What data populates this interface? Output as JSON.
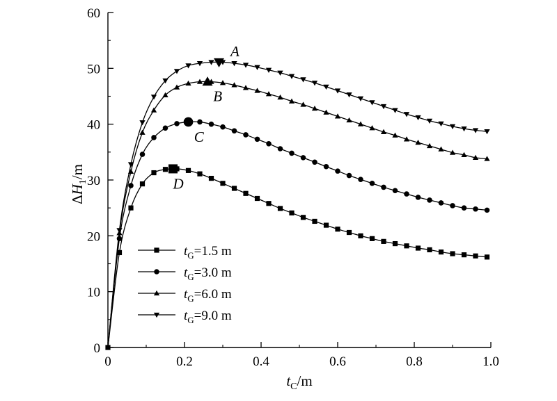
{
  "chart_data": {
    "type": "line",
    "xlabel": {
      "var": "t",
      "sub": "C",
      "unit": "/m"
    },
    "ylabel": {
      "prefix": "Δ",
      "var": "H",
      "sub": "1",
      "unit": "/m"
    },
    "xlim": [
      0,
      1.0
    ],
    "ylim": [
      0,
      60
    ],
    "x_ticks": [
      "0",
      "0.2",
      "0.4",
      "0.6",
      "0.8",
      "1.0"
    ],
    "y_ticks": [
      "0",
      "10",
      "20",
      "30",
      "40",
      "50",
      "60"
    ],
    "grid": false,
    "legend_position": "lower-left",
    "series": [
      {
        "name": "tG=1.5 m",
        "legend": {
          "var": "t",
          "sub": "G",
          "value": "=1.5 m"
        },
        "marker": "square",
        "x": [
          0,
          0.03,
          0.06,
          0.09,
          0.12,
          0.15,
          0.18,
          0.21,
          0.24,
          0.27,
          0.3,
          0.33,
          0.36,
          0.39,
          0.42,
          0.45,
          0.48,
          0.51,
          0.54,
          0.57,
          0.6,
          0.63,
          0.66,
          0.69,
          0.72,
          0.75,
          0.78,
          0.81,
          0.84,
          0.87,
          0.9,
          0.93,
          0.96,
          0.99
        ],
        "values": [
          0,
          17.0,
          25.0,
          29.3,
          31.3,
          31.9,
          32.0,
          31.7,
          31.1,
          30.3,
          29.4,
          28.5,
          27.6,
          26.7,
          25.8,
          24.9,
          24.1,
          23.3,
          22.6,
          21.9,
          21.2,
          20.6,
          20.0,
          19.5,
          19.0,
          18.6,
          18.2,
          17.8,
          17.5,
          17.1,
          16.8,
          16.6,
          16.4,
          16.2
        ]
      },
      {
        "name": "tG=3.0 m",
        "legend": {
          "var": "t",
          "sub": "G",
          "value": "=3.0 m"
        },
        "marker": "circle",
        "x": [
          0,
          0.03,
          0.06,
          0.09,
          0.12,
          0.15,
          0.18,
          0.21,
          0.24,
          0.27,
          0.3,
          0.33,
          0.36,
          0.39,
          0.42,
          0.45,
          0.48,
          0.51,
          0.54,
          0.57,
          0.6,
          0.63,
          0.66,
          0.69,
          0.72,
          0.75,
          0.78,
          0.81,
          0.84,
          0.87,
          0.9,
          0.93,
          0.96,
          0.99
        ],
        "values": [
          0,
          19.5,
          29.0,
          34.6,
          37.6,
          39.3,
          40.1,
          40.4,
          40.4,
          40.0,
          39.5,
          38.8,
          38.1,
          37.3,
          36.5,
          35.6,
          34.8,
          34.0,
          33.2,
          32.4,
          31.6,
          30.8,
          30.1,
          29.4,
          28.7,
          28.1,
          27.5,
          26.9,
          26.4,
          25.9,
          25.4,
          25.0,
          24.8,
          24.6
        ]
      },
      {
        "name": "tG=6.0 m",
        "legend": {
          "var": "t",
          "sub": "G",
          "value": "=6.0 m"
        },
        "marker": "triangle-up",
        "x": [
          0,
          0.03,
          0.06,
          0.09,
          0.12,
          0.15,
          0.18,
          0.21,
          0.24,
          0.27,
          0.3,
          0.33,
          0.36,
          0.39,
          0.42,
          0.45,
          0.48,
          0.51,
          0.54,
          0.57,
          0.6,
          0.63,
          0.66,
          0.69,
          0.72,
          0.75,
          0.78,
          0.81,
          0.84,
          0.87,
          0.9,
          0.93,
          0.96,
          0.99
        ],
        "values": [
          0,
          20.5,
          31.5,
          38.5,
          42.5,
          45.2,
          46.6,
          47.3,
          47.6,
          47.6,
          47.4,
          47.0,
          46.5,
          46.0,
          45.4,
          44.8,
          44.1,
          43.5,
          42.8,
          42.1,
          41.4,
          40.7,
          40.0,
          39.3,
          38.6,
          38.0,
          37.3,
          36.7,
          36.1,
          35.5,
          34.9,
          34.5,
          34.0,
          33.8
        ]
      },
      {
        "name": "tG=9.0 m",
        "legend": {
          "var": "t",
          "sub": "G",
          "value": "=9.0 m"
        },
        "marker": "triangle-down",
        "x": [
          0,
          0.03,
          0.06,
          0.09,
          0.12,
          0.15,
          0.18,
          0.21,
          0.24,
          0.27,
          0.3,
          0.33,
          0.36,
          0.39,
          0.42,
          0.45,
          0.48,
          0.51,
          0.54,
          0.57,
          0.6,
          0.63,
          0.66,
          0.69,
          0.72,
          0.75,
          0.78,
          0.81,
          0.84,
          0.87,
          0.9,
          0.93,
          0.96,
          0.99
        ],
        "values": [
          0,
          21.0,
          32.8,
          40.3,
          44.9,
          47.8,
          49.5,
          50.5,
          50.9,
          51.1,
          51.1,
          50.9,
          50.6,
          50.2,
          49.7,
          49.2,
          48.6,
          48.0,
          47.4,
          46.7,
          46.0,
          45.3,
          44.6,
          43.9,
          43.2,
          42.5,
          41.8,
          41.2,
          40.6,
          40.1,
          39.6,
          39.2,
          38.9,
          38.7
        ]
      }
    ],
    "annotations": [
      {
        "label": "A",
        "x": 0.29,
        "y": 51.1,
        "marker": "triangle-down",
        "label_dx": 0.03,
        "label_dy": 1.9
      },
      {
        "label": "B",
        "x": 0.26,
        "y": 47.6,
        "marker": "triangle-up",
        "label_dx": 0.015,
        "label_dy": -2.6
      },
      {
        "label": "C",
        "x": 0.21,
        "y": 40.4,
        "marker": "circle",
        "label_dx": 0.015,
        "label_dy": -2.7
      },
      {
        "label": "D",
        "x": 0.17,
        "y": 32.0,
        "marker": "square",
        "label_dx": 0.0,
        "label_dy": -2.7
      }
    ]
  }
}
